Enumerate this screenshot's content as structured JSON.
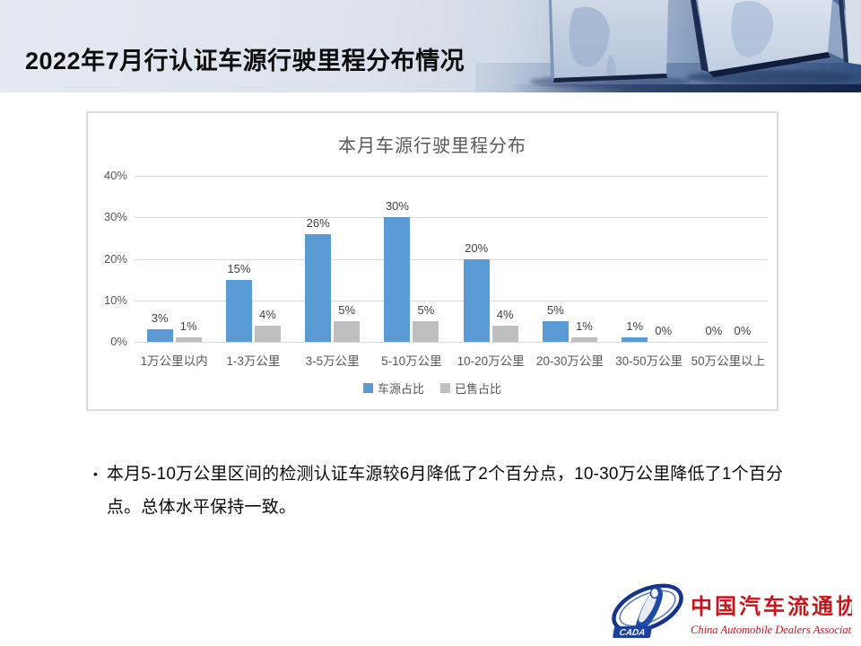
{
  "slide": {
    "title": "2022年7月行认证车源行驶里程分布情况",
    "bullet": "本月5-10万公里区间的检测认证车源较6月降低了2个百分点，10-30万公里降低了1个百分点。总体水平保持一致。"
  },
  "chart_data": {
    "type": "bar",
    "title": "本月车源行驶里程分布",
    "categories": [
      "1万公里以内",
      "1-3万公里",
      "3-5万公里",
      "5-10万公里",
      "10-20万公里",
      "20-30万公里",
      "30-50万公里",
      "50万公里以上"
    ],
    "series": [
      {
        "name": "车源占比",
        "color": "#5b9bd5",
        "values": [
          3,
          15,
          26,
          30,
          20,
          5,
          1,
          0
        ]
      },
      {
        "name": "已售占比",
        "color": "#bfbfbf",
        "values": [
          1,
          4,
          5,
          5,
          4,
          1,
          0,
          0
        ]
      }
    ],
    "xlabel": "",
    "ylabel": "",
    "ylim": [
      0,
      40
    ],
    "yticks": [
      "0%",
      "10%",
      "20%",
      "30%",
      "40%"
    ],
    "grid": true,
    "legend_position": "bottom",
    "value_label_suffix": "%"
  },
  "logo": {
    "acronym": "CADA",
    "cn_name": "中国汽车流通协会",
    "en_name": "China Automobile Dealers Association"
  },
  "colors": {
    "bar_blue": "#5b9bd5",
    "bar_gray": "#bfbfbf",
    "grid_gray": "#d9d9d9",
    "axis_text": "#595959",
    "logo_red": "#c8151b",
    "logo_blue": "#16348c",
    "header_dark_blue": "#3a5588"
  }
}
